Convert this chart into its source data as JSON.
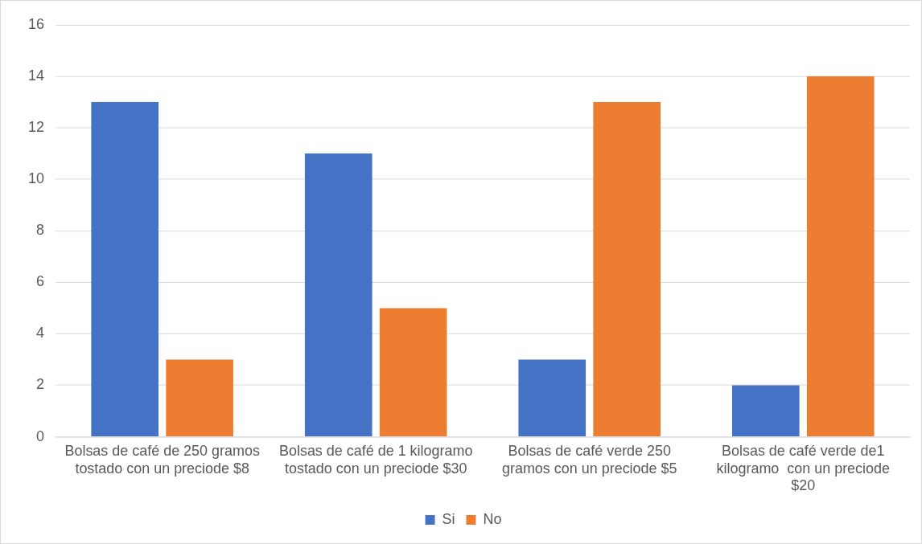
{
  "chart_data": {
    "type": "bar",
    "categories": [
      "Bolsas de café de 250 gramos tostado con un preciode $8",
      "Bolsas de café de 1 kilogramo tostado con un preciode $30",
      "Bolsas de café verde 250 gramos con un preciode $5",
      "Bolsas de café verde de1 kilogramo  con un preciode $20"
    ],
    "series": [
      {
        "name": "Si",
        "color": "#4472c4",
        "values": [
          13,
          11,
          3,
          2
        ]
      },
      {
        "name": "No",
        "color": "#ed7d31",
        "values": [
          3,
          5,
          13,
          14
        ]
      }
    ],
    "ylim": [
      0,
      16
    ],
    "yticks": [
      0,
      2,
      4,
      6,
      8,
      10,
      12,
      14,
      16
    ],
    "grid": "y",
    "legend": "bottom"
  }
}
